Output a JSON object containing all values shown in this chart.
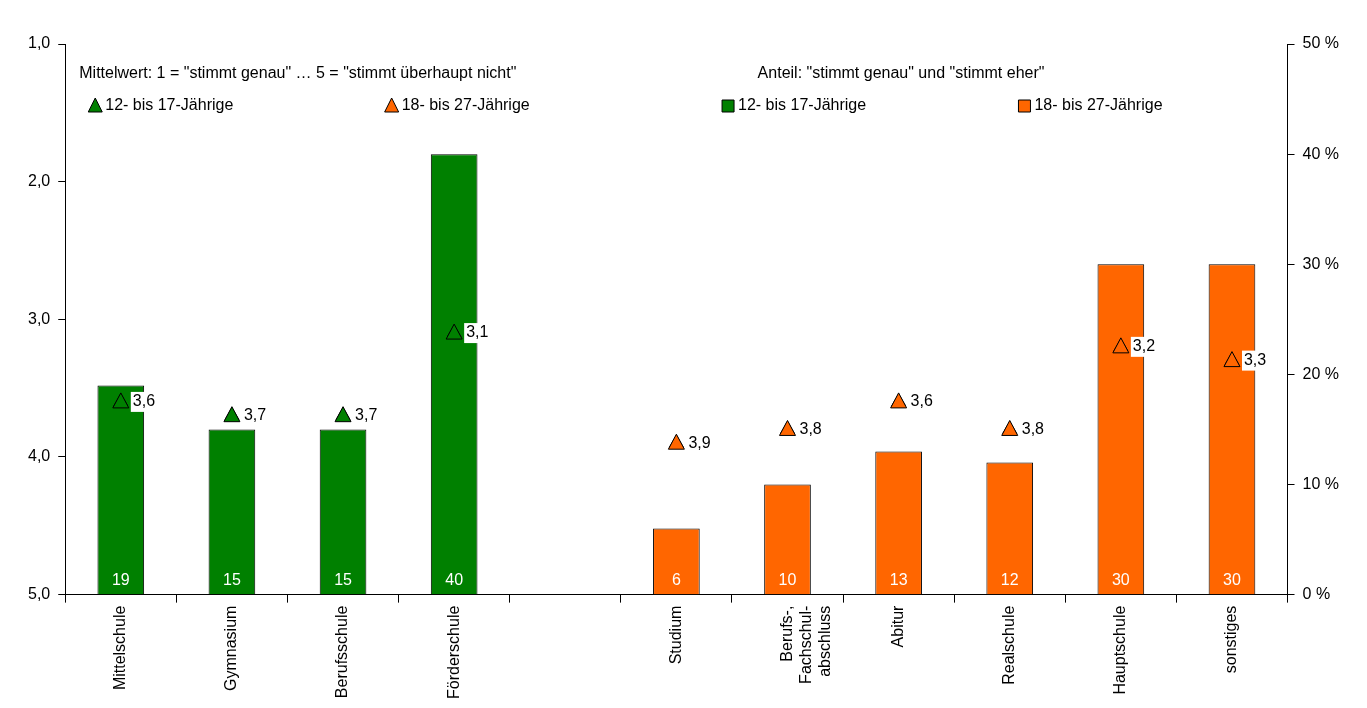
{
  "chart_data": {
    "type": "bar",
    "categories": [
      "Mittelschule",
      "Gymnasium",
      "Berufsschule",
      "Förderschule",
      null,
      "Studium",
      "Berufs-,\nFachschul-\nabschluss",
      "Abitur",
      "Realschule",
      "Hauptschule",
      "sonstiges"
    ],
    "series": [
      {
        "name": "12- bis 17-Jährige",
        "axis": "y2",
        "color": "#008000",
        "values": [
          19,
          15,
          15,
          40,
          null,
          null,
          null,
          null,
          null,
          null,
          null
        ],
        "value_labels": [
          "19",
          "15",
          "15",
          "40",
          null,
          null,
          null,
          null,
          null,
          null,
          null
        ]
      },
      {
        "name": "18- bis 27-Jährige",
        "axis": "y2",
        "color": "#ff6600",
        "values": [
          null,
          null,
          null,
          null,
          null,
          6,
          10,
          13,
          12,
          30,
          30
        ],
        "value_labels": [
          null,
          null,
          null,
          null,
          null,
          "6",
          "10",
          "13",
          "12",
          "30",
          "30"
        ]
      },
      {
        "name": "12- bis 17-Jährige",
        "type": "scatter",
        "axis": "y",
        "color": "#008000",
        "marker": "triangle",
        "values": [
          3.6,
          3.7,
          3.7,
          3.1,
          null,
          null,
          null,
          null,
          null,
          null,
          null
        ],
        "value_labels": [
          "3,6",
          "3,7",
          "3,7",
          "3,1",
          null,
          null,
          null,
          null,
          null,
          null,
          null
        ]
      },
      {
        "name": "18- bis 27-Jährige",
        "type": "scatter",
        "axis": "y",
        "color": "#ff6600",
        "marker": "triangle",
        "values": [
          null,
          null,
          null,
          null,
          null,
          3.9,
          3.8,
          3.6,
          3.8,
          3.2,
          3.3
        ],
        "value_labels": [
          null,
          null,
          null,
          null,
          null,
          "3,9",
          "3,8",
          "3,6",
          "3,8",
          "3,2",
          "3,3"
        ]
      }
    ],
    "ylim": [
      5,
      1
    ],
    "yticks": [
      {
        "value": 1,
        "label": "1,0"
      },
      {
        "value": 2,
        "label": "2,0"
      },
      {
        "value": 3,
        "label": "3,0"
      },
      {
        "value": 4,
        "label": "4,0"
      },
      {
        "value": 5,
        "label": "5,0"
      }
    ],
    "y2lim": [
      0,
      50
    ],
    "y2ticks": [
      {
        "value": 0,
        "label": "0 %"
      },
      {
        "value": 10,
        "label": "10 %"
      },
      {
        "value": 20,
        "label": "20 %"
      },
      {
        "value": 30,
        "label": "30 %"
      },
      {
        "value": 40,
        "label": "40 %"
      },
      {
        "value": 50,
        "label": "50 %"
      }
    ],
    "annotations": [
      "Mittelwert: 1 = \"stimmt genau\" … 5 = \"stimmt überhaupt nicht\"",
      "Anteil: \"stimmt genau\" und \"stimmt eher\""
    ],
    "legend": "top",
    "grid": false
  }
}
